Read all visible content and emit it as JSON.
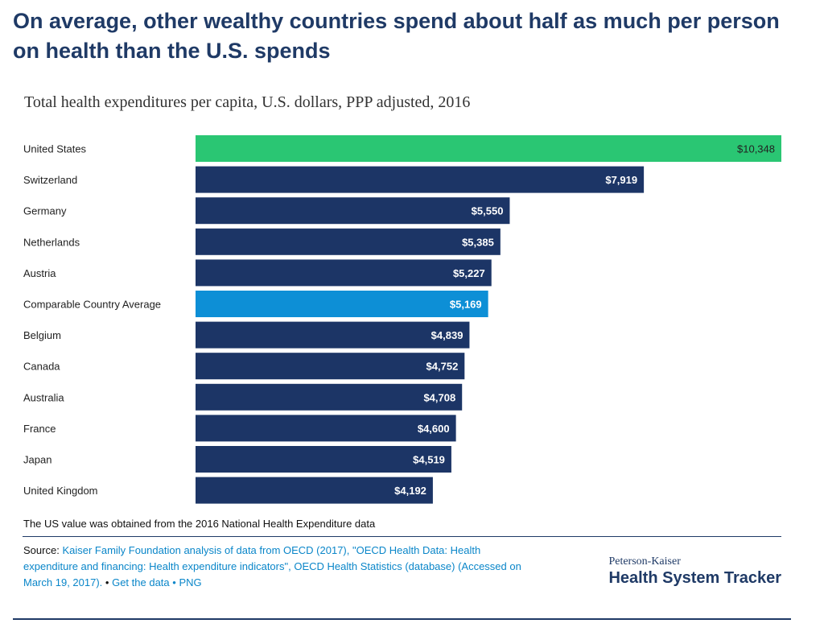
{
  "headline": "On average, other wealthy countries spend about half as much per person on health than the U.S. spends",
  "chart_data": {
    "type": "bar",
    "orientation": "horizontal",
    "title": "Total health expenditures per capita, U.S. dollars, PPP adjusted, 2016",
    "categories": [
      "United States",
      "Switzerland",
      "Germany",
      "Netherlands",
      "Austria",
      "Comparable Country Average",
      "Belgium",
      "Canada",
      "Australia",
      "France",
      "Japan",
      "United Kingdom"
    ],
    "values": [
      10348,
      7919,
      5550,
      5385,
      5227,
      5169,
      4839,
      4752,
      4708,
      4600,
      4519,
      4192
    ],
    "value_labels": [
      "$10,348",
      "$7,919",
      "$5,550",
      "$5,385",
      "$5,227",
      "$5,169",
      "$4,839",
      "$4,752",
      "$4,708",
      "$4,600",
      "$4,519",
      "$4,192"
    ],
    "colors": {
      "United States": "#2ac673",
      "Comparable Country Average": "#0d8fd6",
      "default": "#1c3566"
    },
    "xlim": [
      0,
      10348
    ],
    "grid": false,
    "legend": "none"
  },
  "note": "The US value was obtained from the 2016 National Health Expenditure data",
  "source": {
    "label": "Source:",
    "text": "Kaiser Family Foundation analysis of data from OECD (2017), \"OECD Health Data: Health expenditure and financing: Health expenditure indicators\", OECD Health Statistics (database) (Accessed on March 19, 2017).",
    "separator": "•",
    "get_data": "Get the data",
    "png": "PNG"
  },
  "brand": {
    "small": "Peterson-Kaiser",
    "big": "Health System Tracker"
  }
}
